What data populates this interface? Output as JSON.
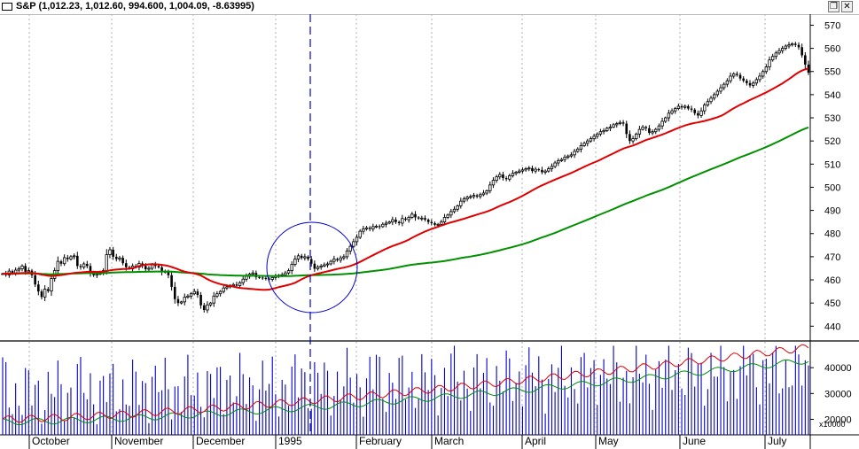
{
  "window": {
    "title": "S&P (1,012.23, 1,012.60, 994.600, 1,004.09, -8.63995)",
    "restore_glyph": "❐",
    "close_glyph": "✕"
  },
  "colors": {
    "price_bars": "#000000",
    "ma_fast": "#e00000",
    "ma_slow": "#009000",
    "volume_bars": "#0000c8",
    "cursor_line": "#0000c8",
    "highlight_circle": "#0000c8",
    "grid": "#b0b0b0"
  },
  "chart_data": [
    {
      "type": "ohlc",
      "panel": "price",
      "y_ticks": [
        "440",
        "450",
        "460",
        "470",
        "480",
        "490",
        "500",
        "510",
        "520",
        "530",
        "540",
        "550",
        "560",
        "570"
      ],
      "ylim": [
        434,
        574
      ],
      "grid": "vertical dashed at month boundaries",
      "axis_position": "right",
      "series": [
        {
          "kind": "price",
          "closes": [
            462.7,
            462.1,
            463.8,
            463.0,
            464.2,
            464.8,
            466.0,
            463.5,
            464.0,
            462.0,
            458.0,
            455.0,
            452.6,
            456.0,
            455.2,
            460.6,
            464.0,
            468.0,
            467.0,
            469.6,
            469.0,
            470.0,
            470.4,
            466.0,
            465.5,
            466.9,
            466.0,
            463.0,
            462.0,
            462.5,
            463.3,
            464.0,
            470.9,
            473.0,
            470.0,
            469.0,
            469.5,
            467.2,
            465.5,
            464.8,
            466.0,
            465.5,
            467.1,
            466.0,
            464.6,
            465.0,
            466.5,
            466.0,
            465.4,
            463.5,
            463.3,
            462.0,
            457.0,
            451.7,
            450.0,
            450.5,
            452.5,
            453.0,
            454.0,
            455.0,
            453.5,
            449.0,
            447.0,
            449.2,
            450.0,
            453.0,
            454.0,
            455.0,
            456.5,
            457.0,
            457.5,
            458.0,
            457.5,
            458.8,
            460.3,
            461.5,
            462.5,
            463.0,
            461.2,
            461.0,
            460.8,
            460.5,
            460.2,
            461.0,
            461.5,
            462.0,
            462.2,
            463.0,
            464.0,
            466.7,
            469.0,
            470.4,
            469.5,
            470.0,
            469.0,
            467.0,
            464.8,
            465.5,
            466.0,
            466.5,
            466.9,
            468.0,
            469.0,
            468.5,
            469.5,
            470.0,
            472.5,
            474.5,
            476.5,
            478.4,
            481.0,
            482.0,
            482.5,
            482.0,
            483.0,
            483.2,
            483.0,
            484.0,
            484.5,
            485.0,
            486.0,
            485.0,
            484.5,
            486.5,
            486.0,
            487.0,
            488.4,
            487.0,
            486.5,
            486.7,
            486.0,
            485.0,
            484.5,
            483.8,
            484.0,
            485.0,
            487.0,
            488.0,
            489.5,
            490.5,
            492.0,
            494.0,
            495.0,
            495.7,
            496.0,
            496.5,
            496.0,
            496.8,
            497.5,
            498.5,
            501.0,
            503.0,
            504.5,
            505.5,
            504.0,
            503.5,
            505.0,
            506.0,
            506.5,
            507.0,
            507.5,
            508.0,
            508.3,
            507.0,
            507.8,
            507.5,
            506.5,
            507.0,
            508.0,
            509.0,
            510.5,
            511.5,
            512.0,
            513.0,
            513.5,
            514.0,
            515.5,
            516.5,
            518.0,
            519.0,
            520.0,
            521.0,
            522.0,
            523.0,
            524.0,
            524.5,
            525.5,
            526.0,
            527.0,
            527.5,
            528.0,
            527.5,
            523.0,
            520.0,
            521.0,
            523.0,
            525.0,
            526.0,
            525.5,
            523.5,
            524.0,
            525.0,
            526.5,
            528.5,
            530.0,
            532.0,
            533.0,
            534.0,
            535.0,
            534.5,
            535.0,
            534.0,
            533.5,
            532.0,
            531.0,
            533.0,
            535.5,
            537.0,
            538.5,
            540.0,
            541.5,
            543.0,
            544.5,
            546.0,
            548.0,
            549.0,
            548.5,
            547.0,
            546.0,
            545.0,
            544.0,
            545.0,
            546.5,
            548.0,
            550.0,
            552.0,
            555.0,
            556.5,
            558.0,
            559.0,
            560.0,
            561.0,
            561.5,
            562.0,
            561.5,
            560.5,
            557.0,
            553.0,
            549.5
          ]
        },
        {
          "kind": "moving-average",
          "color": "red"
        },
        {
          "kind": "moving-average",
          "color": "green"
        }
      ],
      "x_labels": [
        "October",
        "November",
        "December",
        "1995",
        "February",
        "March",
        "April",
        "May",
        "June",
        "July"
      ]
    },
    {
      "type": "bar",
      "panel": "volume",
      "y_ticks": [
        "20000",
        "30000",
        "40000"
      ],
      "ylim": [
        14000,
        50000
      ],
      "y_unit_label": "x10000",
      "overlays": [
        "red line",
        "green line"
      ]
    }
  ]
}
